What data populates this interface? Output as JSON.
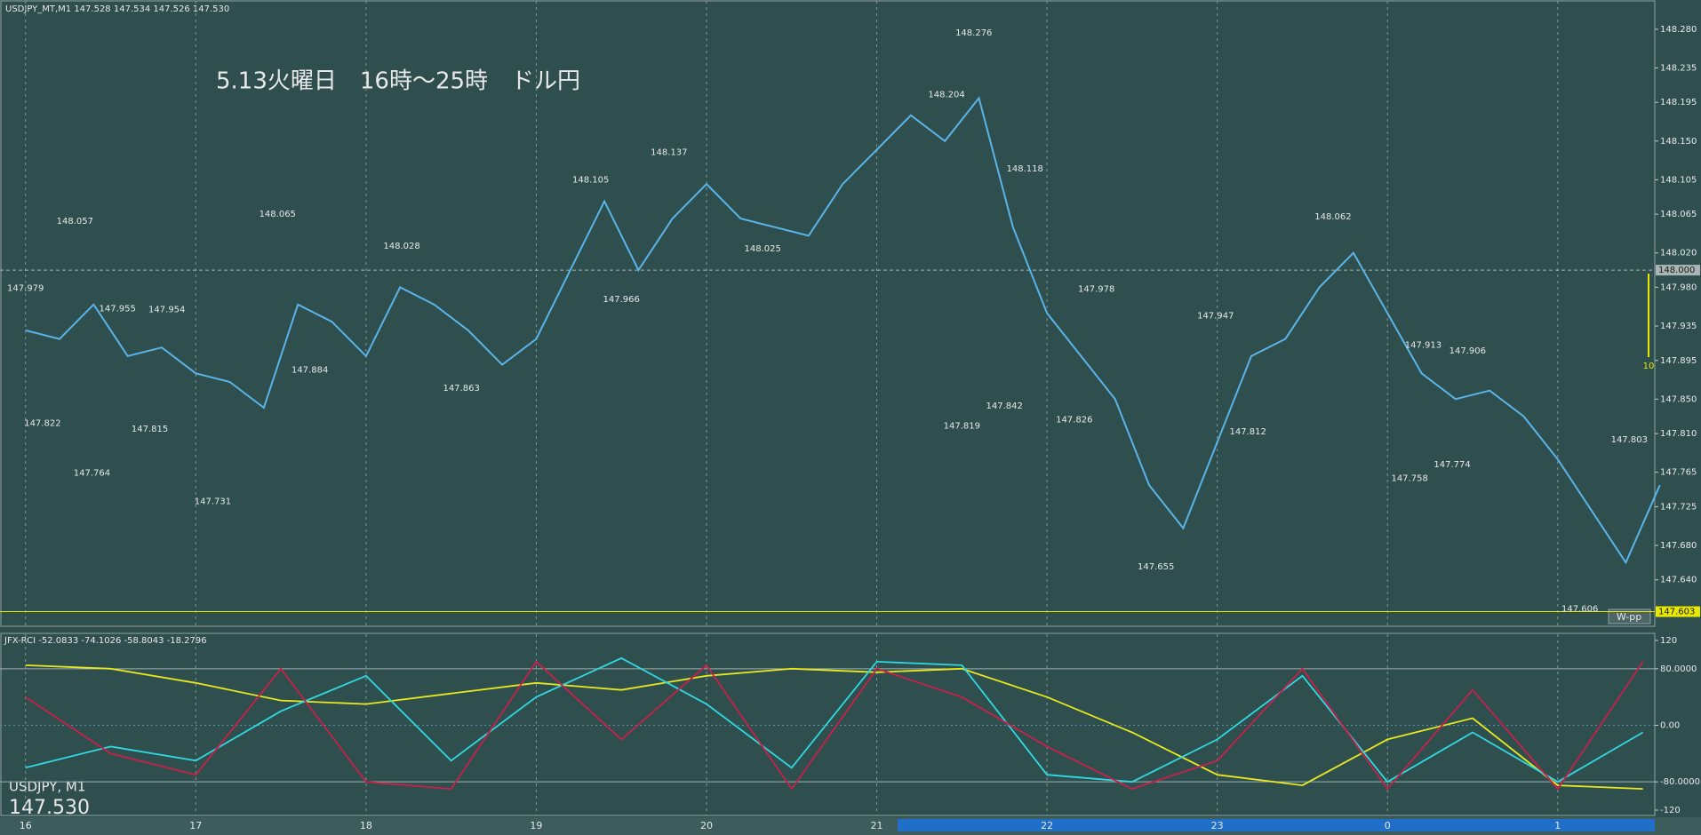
{
  "chart_data": [
    {
      "type": "line",
      "header": "USDJPY_MT,M1  147.528 147.534 147.526 147.530",
      "title": "5.13火曜日　16時～25時　ドル円",
      "symbol": "USDJPY, M1",
      "bid_label": "147.530",
      "pivot_label": "W-pp",
      "marker_label": "10",
      "x": [
        16,
        16.2,
        16.4,
        16.6,
        16.8,
        17,
        17.2,
        17.4,
        17.6,
        17.8,
        18,
        18.2,
        18.4,
        18.6,
        18.8,
        19,
        19.2,
        19.4,
        19.6,
        19.8,
        20,
        20.2,
        20.4,
        20.6,
        20.8,
        21,
        21.2,
        21.4,
        21.6,
        21.8,
        22,
        22.2,
        22.4,
        22.6,
        22.8,
        23,
        23.2,
        23.4,
        23.6,
        23.8,
        24,
        24.2,
        24.4,
        24.6,
        24.8,
        25,
        25.2,
        25.4,
        25.6
      ],
      "series": [
        {
          "color": "#5ab4e8",
          "values": [
            147.93,
            147.92,
            147.96,
            147.9,
            147.91,
            147.88,
            147.87,
            147.84,
            147.96,
            147.94,
            147.9,
            147.98,
            147.96,
            147.93,
            147.89,
            147.92,
            148.0,
            148.08,
            148.0,
            148.06,
            148.1,
            148.06,
            148.05,
            148.04,
            148.1,
            148.14,
            148.18,
            148.15,
            148.2,
            148.05,
            147.95,
            147.9,
            147.85,
            147.75,
            147.7,
            147.8,
            147.9,
            147.92,
            147.98,
            148.02,
            147.95,
            147.88,
            147.85,
            147.86,
            147.83,
            147.78,
            147.72,
            147.66,
            147.75
          ]
        }
      ],
      "annotations": [
        {
          "x": 16.29,
          "value": 148.057
        },
        {
          "x": 16.0,
          "value": 147.979
        },
        {
          "x": 16.54,
          "value": 147.955
        },
        {
          "x": 16.83,
          "value": 147.954
        },
        {
          "x": 17.48,
          "value": 148.065
        },
        {
          "x": 18.21,
          "value": 148.028
        },
        {
          "x": 19.32,
          "value": 148.105
        },
        {
          "x": 19.78,
          "value": 148.137
        },
        {
          "x": 19.5,
          "value": 147.966
        },
        {
          "x": 20.33,
          "value": 148.025
        },
        {
          "x": 21.41,
          "value": 148.204
        },
        {
          "x": 21.57,
          "value": 148.276
        },
        {
          "x": 21.87,
          "value": 148.118
        },
        {
          "x": 22.29,
          "value": 147.978
        },
        {
          "x": 22.99,
          "value": 147.947
        },
        {
          "x": 23.68,
          "value": 148.062
        },
        {
          "x": 24.21,
          "value": 147.913
        },
        {
          "x": 24.47,
          "value": 147.906
        },
        {
          "x": 25.42,
          "value": 147.803
        },
        {
          "x": 16.1,
          "value": 147.822
        },
        {
          "x": 16.39,
          "value": 147.764
        },
        {
          "x": 16.73,
          "value": 147.815
        },
        {
          "x": 17.1,
          "value": 147.731
        },
        {
          "x": 17.67,
          "value": 147.884
        },
        {
          "x": 18.56,
          "value": 147.863
        },
        {
          "x": 21.5,
          "value": 147.819
        },
        {
          "x": 21.75,
          "value": 147.842
        },
        {
          "x": 22.16,
          "value": 147.826
        },
        {
          "x": 22.64,
          "value": 147.655
        },
        {
          "x": 23.18,
          "value": 147.812
        },
        {
          "x": 24.13,
          "value": 147.758
        },
        {
          "x": 24.38,
          "value": 147.774
        },
        {
          "x": 25.13,
          "value": 147.606
        }
      ],
      "price_markers": [
        {
          "value": 148.0,
          "label": "148.000",
          "color": "#aab4b4"
        },
        {
          "value": 147.603,
          "label": "147.603",
          "color": "#e8e800"
        }
      ],
      "xlim": [
        15.85,
        25.57
      ],
      "xticks": [
        16,
        17,
        18,
        19,
        20,
        21,
        22,
        23,
        {
          "value": 24,
          "label": "0"
        },
        {
          "value": 25,
          "label": "1"
        }
      ],
      "ylim": [
        147.586,
        148.314
      ],
      "yticks": [
        {
          "value": 148.28,
          "label": "148.280"
        },
        148.235,
        148.195,
        {
          "value": 148.15,
          "label": "148.150"
        },
        148.105,
        148.065,
        {
          "value": 148.02,
          "label": "148.020"
        },
        {
          "value": 147.98,
          "label": "147.980"
        },
        147.935,
        147.895,
        {
          "value": 147.85,
          "label": "147.850"
        },
        {
          "value": 147.81,
          "label": "147.810"
        },
        147.765,
        147.725,
        {
          "value": 147.68,
          "label": "147.680"
        },
        {
          "value": 147.64,
          "label": "147.640"
        }
      ],
      "grid": true
    },
    {
      "type": "line",
      "title": "JFX-RCI -52.0833 -74.1026 -58.8043 -18.2796",
      "x": [
        16,
        16.5,
        17,
        17.5,
        18,
        18.5,
        19,
        19.5,
        20,
        20.5,
        21,
        21.5,
        22,
        22.5,
        23,
        23.5,
        24,
        24.5,
        25,
        25.5
      ],
      "series": [
        {
          "color": "#e8e820",
          "values": [
            85,
            80,
            60,
            35,
            30,
            45,
            60,
            50,
            70,
            80,
            75,
            80,
            40,
            -10,
            -70,
            -85,
            -20,
            10,
            -85,
            -90
          ]
        },
        {
          "color": "#30d8e0",
          "values": [
            -60,
            -30,
            -50,
            20,
            70,
            -50,
            40,
            95,
            30,
            -60,
            90,
            85,
            -70,
            -80,
            -20,
            70,
            -80,
            -10,
            -80,
            -10
          ]
        },
        {
          "color": "#c8204a",
          "values": [
            40,
            -40,
            -70,
            80,
            -80,
            -90,
            90,
            -20,
            85,
            -90,
            80,
            40,
            -30,
            -90,
            -50,
            80,
            -90,
            50,
            -90,
            90
          ]
        }
      ],
      "xlim": [
        15.85,
        25.57
      ],
      "ylim": [
        -120,
        120
      ],
      "yticks": [
        120,
        {
          "value": 80,
          "label": "80.0000"
        },
        {
          "value": 0,
          "label": "0.00"
        },
        {
          "value": -80,
          "label": "-80.0000"
        },
        -120
      ]
    }
  ]
}
